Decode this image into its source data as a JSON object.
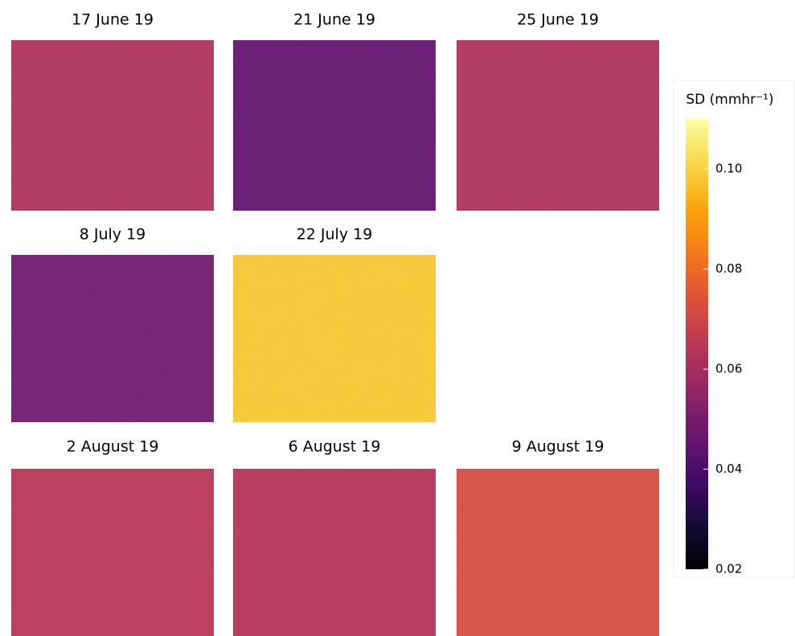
{
  "chart_data": {
    "type": "heatmap",
    "panels": [
      {
        "title": "17 June 19",
        "value": 0.062
      },
      {
        "title": "21 June 19",
        "value": 0.045
      },
      {
        "title": "25 June 19",
        "value": 0.062
      },
      {
        "title": "8 July 19",
        "value": 0.048
      },
      {
        "title": "22 July 19",
        "value": 0.098
      },
      {
        "title": "2 August 19",
        "value": 0.064
      },
      {
        "title": "6 August 19",
        "value": 0.063
      },
      {
        "title": "9 August 19",
        "value": 0.072
      }
    ],
    "colorbar": {
      "label": "SD (mmhr⁻¹)",
      "colormap": "inferno",
      "lim": [
        0.02,
        0.11
      ],
      "ticks": [
        0.02,
        0.04,
        0.06,
        0.08,
        {
          "value": 0.1,
          "label": "0.10"
        }
      ]
    }
  }
}
